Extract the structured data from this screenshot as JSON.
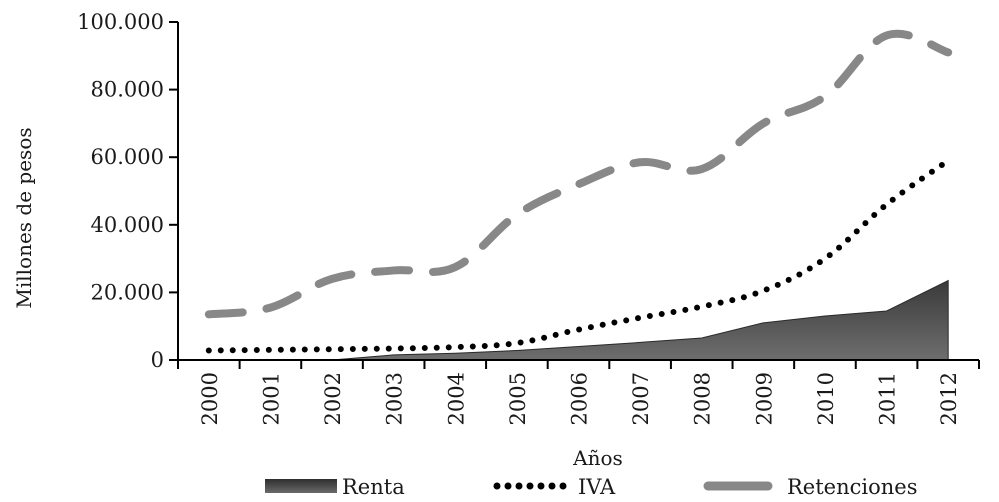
{
  "chart_data": {
    "type": "area",
    "xlabel": "Años",
    "ylabel": "Millones de pesos",
    "categories": [
      "2000",
      "2001",
      "2002",
      "2003",
      "2004",
      "2005",
      "2006",
      "2007",
      "2008",
      "2009",
      "2010",
      "2011",
      "2012"
    ],
    "ylim": [
      0,
      100000
    ],
    "y_ticks": [
      0,
      20000,
      40000,
      60000,
      80000,
      100000
    ],
    "y_tick_labels": [
      "0",
      "20.000",
      "40.000",
      "60.000",
      "80.000",
      "100.000"
    ],
    "grid": false,
    "legend_placement": "bottom",
    "series": [
      {
        "name": "Renta",
        "style": "area",
        "color": "#555555",
        "values": [
          0,
          0,
          0,
          1500,
          2000,
          2800,
          4000,
          5200,
          6500,
          11000,
          13000,
          14500,
          23500
        ]
      },
      {
        "name": "IVA",
        "style": "dotted",
        "color": "#000000",
        "values": [
          2800,
          3000,
          3200,
          3400,
          3800,
          5000,
          9000,
          12500,
          15800,
          20500,
          30000,
          46000,
          59000
        ]
      },
      {
        "name": "Retenciones",
        "style": "dashed",
        "color": "#888888",
        "values": [
          13500,
          15500,
          24000,
          26500,
          27500,
          43000,
          52000,
          58500,
          56500,
          70000,
          78000,
          96000,
          91000
        ]
      }
    ]
  }
}
